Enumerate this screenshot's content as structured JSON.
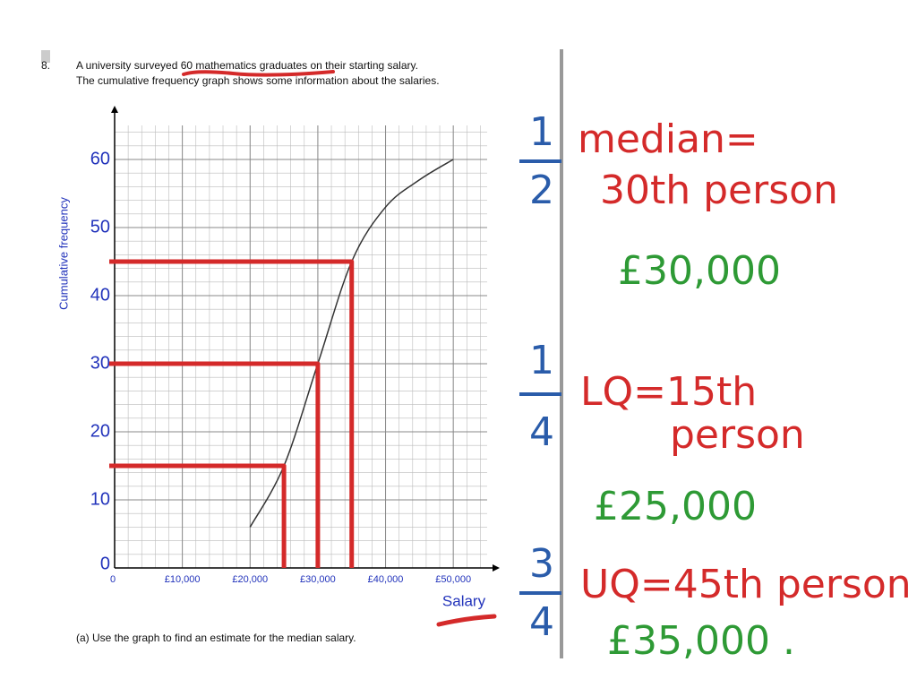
{
  "question": {
    "number": "8.",
    "lines": [
      "A university surveyed 60 mathematics graduates on their starting salary.",
      "The cumulative frequency graph shows some information about the salaries."
    ],
    "part_a": "(a)  Use the graph to find an estimate for the median salary."
  },
  "chart_data": {
    "type": "line",
    "x_label": "Salary",
    "y_label": "Cumulative frequency",
    "x": [
      20000,
      25000,
      30000,
      35000,
      40000,
      45000,
      50000
    ],
    "values": [
      6,
      15,
      30,
      45,
      53,
      57,
      60
    ],
    "color": "#333333",
    "xlim": [
      0,
      55000
    ],
    "ylim": [
      0,
      65
    ],
    "xticks": [
      0,
      {
        "value": 10000,
        "label": "£10,000"
      },
      {
        "value": 20000,
        "label": "£20,000"
      },
      {
        "value": 30000,
        "label": "£30,000"
      },
      {
        "value": 40000,
        "label": "£40,000"
      },
      {
        "value": 50000,
        "label": "£50,000"
      }
    ],
    "yticks": [
      0,
      10,
      20,
      30,
      40,
      50,
      60
    ],
    "grid": true,
    "minor_divisions": 5,
    "readings": [
      {
        "y": 15,
        "x": 25000
      },
      {
        "y": 30,
        "x": 30000
      },
      {
        "y": 45,
        "x": 35000
      }
    ],
    "readings_color": "#d42a2a"
  },
  "notes": {
    "fraction_color": "#2a5caa",
    "fractions": [
      {
        "numerator": "1",
        "denominator": "2"
      },
      {
        "numerator": "1",
        "denominator": "4"
      },
      {
        "numerator": "3",
        "denominator": "4"
      }
    ],
    "lines": [
      {
        "text": "median=",
        "color": "#d42a2a"
      },
      {
        "text": "30th person",
        "color": "#d42a2a"
      },
      {
        "text": "£30,000",
        "color": "#2e9a35"
      },
      {
        "text": "LQ=15th",
        "color": "#d42a2a"
      },
      {
        "text": "person",
        "color": "#d42a2a"
      },
      {
        "text": "£25,000",
        "color": "#2e9a35"
      },
      {
        "text": "UQ=45th person",
        "color": "#d42a2a"
      },
      {
        "text": "£35,000 .",
        "color": "#2e9a35"
      }
    ]
  }
}
